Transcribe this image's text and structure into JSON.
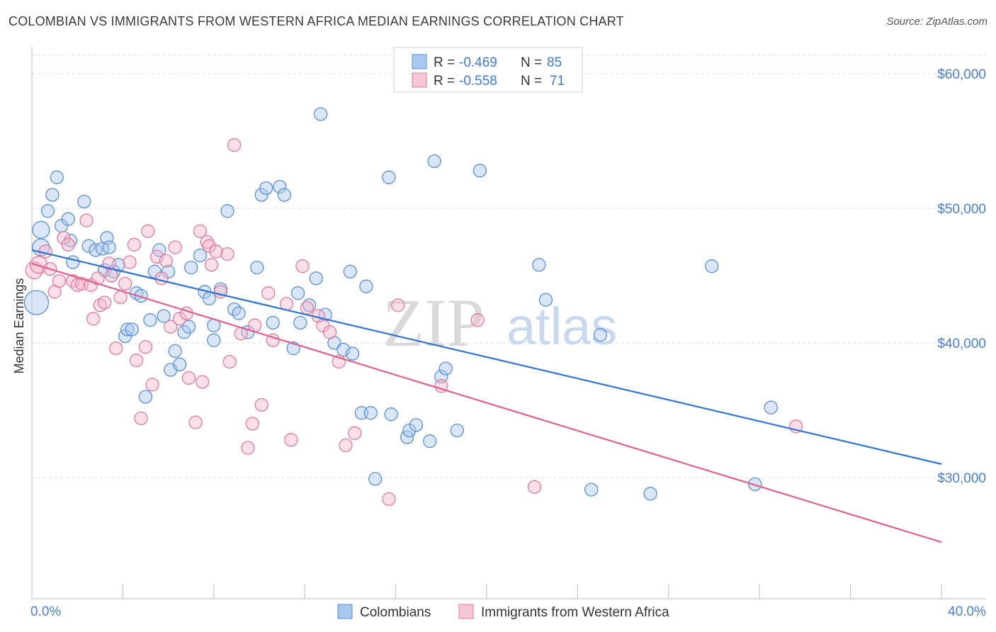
{
  "header": {
    "title": "COLOMBIAN VS IMMIGRANTS FROM WESTERN AFRICA MEDIAN EARNINGS CORRELATION CHART",
    "source": "Source: ZipAtlas.com"
  },
  "watermark": {
    "part1": "ZIP",
    "part2": "atlas"
  },
  "legend_top": {
    "rows": [
      {
        "r_label": "R =",
        "r_value": "-0.469",
        "n_label": "N =",
        "n_value": "85"
      },
      {
        "r_label": "R =",
        "r_value": "-0.558",
        "n_label": "N =",
        "n_value": "71"
      }
    ]
  },
  "legend_bottom": {
    "items": [
      "Colombians",
      "Immigrants from Western Africa"
    ]
  },
  "colors": {
    "blue_fill": "#a9c8ef",
    "blue_stroke": "#5b8fd6",
    "blue_line": "#2f73d0",
    "pink_fill": "#f5b8cb",
    "pink_stroke": "#e07a9c",
    "pink_line": "#e0608b",
    "axis_text": "#4a7fcf",
    "grid": "#dddddd"
  },
  "chart_data": {
    "type": "scatter",
    "title": "COLOMBIAN VS IMMIGRANTS FROM WESTERN AFRICA MEDIAN EARNINGS CORRELATION CHART",
    "xlabel": "",
    "ylabel": "Median Earnings",
    "xlim": [
      0,
      40
    ],
    "ylim": [
      21000,
      62000
    ],
    "x_tick_labels": [
      "0.0%",
      "40.0%"
    ],
    "y_ticks": [
      30000,
      40000,
      50000,
      60000
    ],
    "y_tick_labels": [
      "$30,000",
      "$40,000",
      "$50,000",
      "$60,000"
    ],
    "grid": true,
    "legend_position": "top-center",
    "series": [
      {
        "name": "Colombians",
        "r": -0.469,
        "n": 85,
        "trend": {
          "x": [
            0,
            40
          ],
          "y": [
            46900,
            31000
          ]
        },
        "points": [
          [
            0.2,
            43000
          ],
          [
            0.4,
            48400
          ],
          [
            0.4,
            47100
          ],
          [
            0.7,
            49800
          ],
          [
            0.9,
            51000
          ],
          [
            1.1,
            52300
          ],
          [
            1.3,
            48700
          ],
          [
            1.6,
            49200
          ],
          [
            1.7,
            47600
          ],
          [
            1.8,
            46000
          ],
          [
            2.3,
            50500
          ],
          [
            2.5,
            47200
          ],
          [
            2.8,
            46900
          ],
          [
            3.1,
            47000
          ],
          [
            3.2,
            45400
          ],
          [
            3.3,
            47800
          ],
          [
            3.4,
            47100
          ],
          [
            3.6,
            45300
          ],
          [
            3.8,
            45800
          ],
          [
            4.1,
            40500
          ],
          [
            4.2,
            41000
          ],
          [
            4.4,
            41000
          ],
          [
            4.6,
            43700
          ],
          [
            4.8,
            43500
          ],
          [
            5.0,
            36000
          ],
          [
            5.2,
            41700
          ],
          [
            5.4,
            45300
          ],
          [
            5.6,
            46900
          ],
          [
            5.8,
            42000
          ],
          [
            6.0,
            45300
          ],
          [
            6.1,
            38000
          ],
          [
            6.3,
            39400
          ],
          [
            6.5,
            38400
          ],
          [
            6.7,
            40800
          ],
          [
            6.9,
            41200
          ],
          [
            7.0,
            45600
          ],
          [
            7.4,
            46500
          ],
          [
            7.6,
            43800
          ],
          [
            7.8,
            43300
          ],
          [
            8.0,
            41300
          ],
          [
            8.3,
            44000
          ],
          [
            8.6,
            49800
          ],
          [
            8.9,
            42500
          ],
          [
            8.0,
            40200
          ],
          [
            9.1,
            42200
          ],
          [
            9.5,
            40800
          ],
          [
            9.9,
            45600
          ],
          [
            10.1,
            51000
          ],
          [
            10.3,
            51500
          ],
          [
            10.6,
            41500
          ],
          [
            10.9,
            51600
          ],
          [
            11.1,
            51000
          ],
          [
            11.5,
            39600
          ],
          [
            11.7,
            43700
          ],
          [
            12.2,
            42800
          ],
          [
            11.8,
            41500
          ],
          [
            12.5,
            44800
          ],
          [
            12.7,
            57000
          ],
          [
            12.9,
            42100
          ],
          [
            13.3,
            40000
          ],
          [
            13.7,
            39500
          ],
          [
            14.0,
            45300
          ],
          [
            14.1,
            39200
          ],
          [
            14.5,
            34800
          ],
          [
            14.7,
            44200
          ],
          [
            14.9,
            34800
          ],
          [
            15.1,
            29900
          ],
          [
            15.7,
            52300
          ],
          [
            15.8,
            34700
          ],
          [
            16.5,
            33000
          ],
          [
            16.6,
            33500
          ],
          [
            16.9,
            33900
          ],
          [
            17.5,
            32700
          ],
          [
            18.0,
            37500
          ],
          [
            18.2,
            38100
          ],
          [
            18.7,
            33500
          ],
          [
            17.7,
            53500
          ],
          [
            19.7,
            52800
          ],
          [
            22.3,
            45800
          ],
          [
            22.6,
            43200
          ],
          [
            24.6,
            29100
          ],
          [
            25.0,
            40600
          ],
          [
            27.2,
            28800
          ],
          [
            29.9,
            45700
          ],
          [
            31.8,
            29500
          ],
          [
            32.5,
            35200
          ]
        ]
      },
      {
        "name": "Immigrants from Western Africa",
        "r": -0.558,
        "n": 71,
        "trend": {
          "x": [
            0,
            40
          ],
          "y": [
            45900,
            25200
          ]
        },
        "points": [
          [
            0.1,
            45400
          ],
          [
            0.3,
            45800
          ],
          [
            0.6,
            46800
          ],
          [
            0.8,
            45500
          ],
          [
            1.0,
            43800
          ],
          [
            1.2,
            44600
          ],
          [
            1.4,
            47800
          ],
          [
            1.6,
            47300
          ],
          [
            1.8,
            44600
          ],
          [
            2.0,
            44300
          ],
          [
            2.2,
            44400
          ],
          [
            2.4,
            49100
          ],
          [
            2.6,
            44300
          ],
          [
            2.7,
            41800
          ],
          [
            2.9,
            44800
          ],
          [
            3.0,
            42800
          ],
          [
            3.2,
            43000
          ],
          [
            3.4,
            45900
          ],
          [
            3.5,
            45000
          ],
          [
            3.7,
            39600
          ],
          [
            3.9,
            43400
          ],
          [
            4.1,
            44400
          ],
          [
            4.3,
            46000
          ],
          [
            4.5,
            47300
          ],
          [
            4.6,
            38700
          ],
          [
            4.8,
            34400
          ],
          [
            5.0,
            39700
          ],
          [
            5.1,
            48300
          ],
          [
            5.3,
            36900
          ],
          [
            5.5,
            46400
          ],
          [
            5.7,
            44800
          ],
          [
            5.9,
            46100
          ],
          [
            6.1,
            41200
          ],
          [
            6.3,
            47100
          ],
          [
            6.5,
            41800
          ],
          [
            6.8,
            42200
          ],
          [
            6.9,
            37400
          ],
          [
            7.2,
            34100
          ],
          [
            7.4,
            48300
          ],
          [
            7.5,
            37100
          ],
          [
            7.7,
            47500
          ],
          [
            7.8,
            47200
          ],
          [
            7.9,
            45800
          ],
          [
            8.1,
            46800
          ],
          [
            8.3,
            43800
          ],
          [
            8.6,
            46600
          ],
          [
            8.7,
            38600
          ],
          [
            8.9,
            54700
          ],
          [
            9.2,
            40700
          ],
          [
            9.5,
            32200
          ],
          [
            9.7,
            34000
          ],
          [
            9.8,
            41300
          ],
          [
            10.1,
            35400
          ],
          [
            10.4,
            43700
          ],
          [
            10.6,
            40200
          ],
          [
            11.2,
            42900
          ],
          [
            11.4,
            32800
          ],
          [
            11.9,
            45700
          ],
          [
            12.1,
            42600
          ],
          [
            12.6,
            42000
          ],
          [
            12.8,
            41300
          ],
          [
            13.1,
            40800
          ],
          [
            13.5,
            38600
          ],
          [
            13.8,
            32400
          ],
          [
            14.2,
            33300
          ],
          [
            15.7,
            28400
          ],
          [
            18.0,
            36800
          ],
          [
            19.6,
            41700
          ],
          [
            22.1,
            29300
          ],
          [
            33.6,
            33800
          ],
          [
            16.1,
            42800
          ]
        ]
      }
    ]
  }
}
